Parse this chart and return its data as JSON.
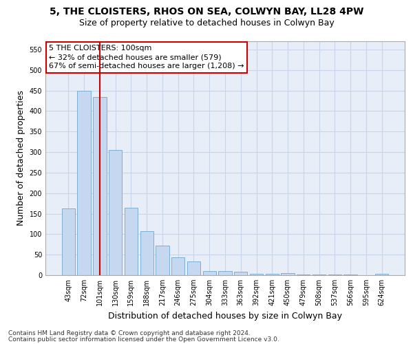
{
  "title_line1": "5, THE CLOISTERS, RHOS ON SEA, COLWYN BAY, LL28 4PW",
  "title_line2": "Size of property relative to detached houses in Colwyn Bay",
  "xlabel": "Distribution of detached houses by size in Colwyn Bay",
  "ylabel": "Number of detached properties",
  "footer_line1": "Contains HM Land Registry data © Crown copyright and database right 2024.",
  "footer_line2": "Contains public sector information licensed under the Open Government Licence v3.0.",
  "categories": [
    "43sqm",
    "72sqm",
    "101sqm",
    "130sqm",
    "159sqm",
    "188sqm",
    "217sqm",
    "246sqm",
    "275sqm",
    "304sqm",
    "333sqm",
    "363sqm",
    "392sqm",
    "421sqm",
    "450sqm",
    "479sqm",
    "508sqm",
    "537sqm",
    "566sqm",
    "595sqm",
    "624sqm"
  ],
  "values": [
    163,
    450,
    435,
    305,
    165,
    107,
    72,
    44,
    33,
    10,
    10,
    8,
    4,
    4,
    5,
    1,
    1,
    1,
    1,
    0,
    4
  ],
  "bar_color": "#c5d8f0",
  "bar_edge_color": "#7bafd4",
  "marker_bar_index": 2,
  "marker_line_color": "#cc0000",
  "annotation_line1": "5 THE CLOISTERS: 100sqm",
  "annotation_line2": "← 32% of detached houses are smaller (579)",
  "annotation_line3": "67% of semi-detached houses are larger (1,208) →",
  "annotation_box_color": "#ffffff",
  "annotation_box_edge": "#cc0000",
  "ylim": [
    0,
    570
  ],
  "yticks": [
    0,
    50,
    100,
    150,
    200,
    250,
    300,
    350,
    400,
    450,
    500,
    550
  ],
  "grid_color": "#c8d4e8",
  "background_color": "#e8eef8",
  "title_fontsize": 10,
  "subtitle_fontsize": 9,
  "axis_label_fontsize": 9,
  "tick_fontsize": 7,
  "footer_fontsize": 6.5,
  "annotation_fontsize": 8
}
